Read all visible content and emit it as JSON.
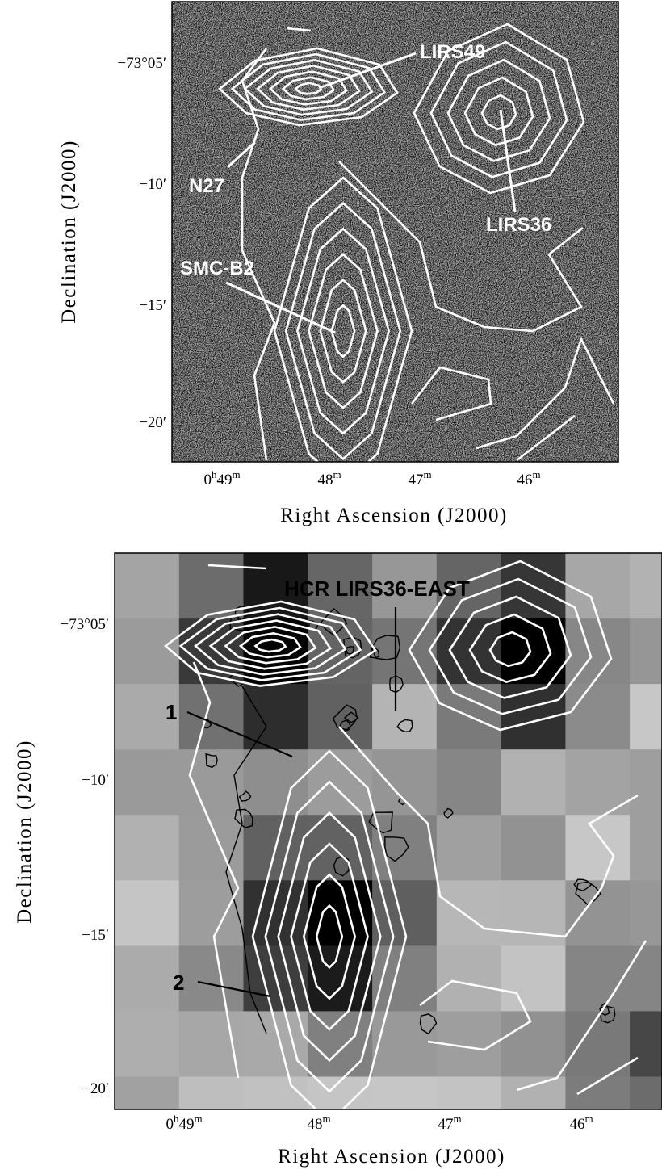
{
  "panels": [
    {
      "annotations": [
        "LIRS49",
        "N27",
        "LIRS36",
        "SMC-B2"
      ],
      "yticks": [
        "−73°05′",
        "−10′",
        "−15′",
        "−20′"
      ],
      "xticks": [
        [
          "0",
          "h",
          "49",
          "m"
        ],
        [
          "48",
          "m"
        ],
        [
          "47",
          "m"
        ],
        [
          "46",
          "m"
        ]
      ],
      "xlabel": "Right Ascension (J2000)",
      "ylabel": "Declination (J2000)"
    },
    {
      "annotations": [
        "HCR LIRS36-EAST",
        "1",
        "2"
      ],
      "yticks": [
        "−73°05′",
        "−10′",
        "−15′",
        "−20′"
      ],
      "xticks": [
        [
          "0",
          "h",
          "49",
          "m"
        ],
        [
          "48",
          "m"
        ],
        [
          "47",
          "m"
        ],
        [
          "46",
          "m"
        ]
      ],
      "xlabel": "Right Ascension (J2000)",
      "ylabel": "Declination (J2000)"
    }
  ]
}
